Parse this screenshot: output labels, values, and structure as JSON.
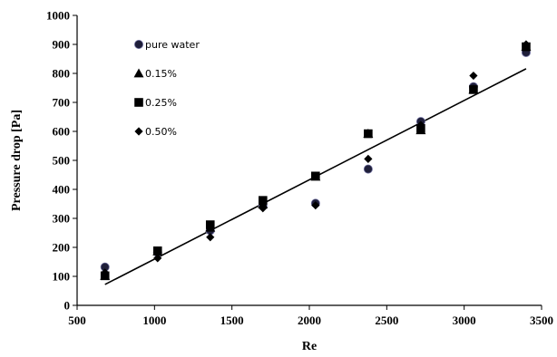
{
  "chart_data": {
    "type": "scatter",
    "title": "",
    "xlabel": "Re",
    "ylabel": "Pressure drop [Pa]",
    "xlim": [
      500,
      3500
    ],
    "ylim": [
      0,
      1000
    ],
    "xticks": [
      500,
      1000,
      1500,
      2000,
      2500,
      3000,
      3500
    ],
    "yticks": [
      0,
      100,
      200,
      300,
      400,
      500,
      600,
      700,
      800,
      900,
      1000
    ],
    "grid": false,
    "legend_position": "top-left",
    "series": [
      {
        "name": "pure water",
        "marker": "circle",
        "x": [
          680,
          1020,
          1360,
          1700,
          2040,
          2380,
          2720,
          3060,
          3400
        ],
        "y": [
          132,
          182,
          258,
          343,
          352,
          470,
          634,
          754,
          872
        ]
      },
      {
        "name": "0.15%",
        "marker": "triangle",
        "x": [
          680,
          1020,
          1360,
          1700,
          2040,
          2380,
          2720,
          3060,
          3400
        ],
        "y": [
          102,
          186,
          268,
          348,
          444,
          592,
          604,
          744,
          892
        ]
      },
      {
        "name": "0.25%",
        "marker": "square",
        "x": [
          680,
          1020,
          1360,
          1700,
          2040,
          2380,
          2720,
          3060,
          3400
        ],
        "y": [
          102,
          188,
          278,
          362,
          446,
          592,
          610,
          744,
          892
        ]
      },
      {
        "name": "0.50%",
        "marker": "diamond",
        "x": [
          680,
          1020,
          1360,
          1700,
          2040,
          2380,
          2720,
          3060,
          3400
        ],
        "y": [
          113,
          163,
          235,
          335,
          345,
          505,
          622,
          792,
          900
        ]
      }
    ],
    "trendline": {
      "x": [
        680,
        3400
      ],
      "y": [
        72,
        816
      ]
    }
  }
}
